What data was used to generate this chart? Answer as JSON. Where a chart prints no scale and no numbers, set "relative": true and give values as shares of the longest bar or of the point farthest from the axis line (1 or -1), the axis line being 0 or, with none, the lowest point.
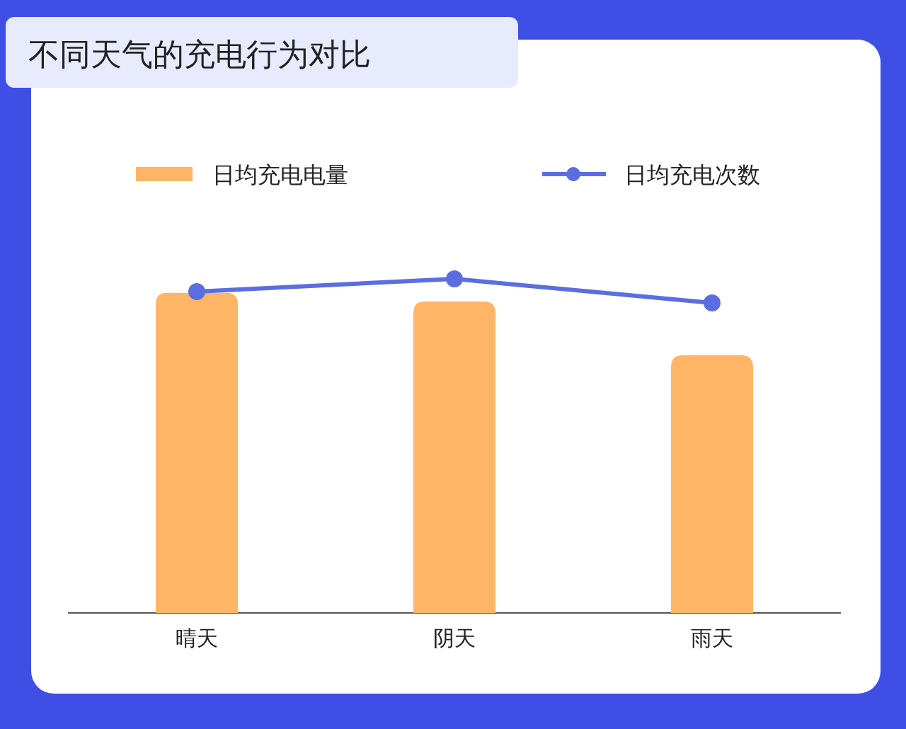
{
  "chart_data": {
    "type": "bar",
    "title": "不同天气的充电行为对比",
    "categories": [
      "晴天",
      "阴天",
      "雨天"
    ],
    "relative": true,
    "legend": "top",
    "grid": false,
    "series": [
      {
        "name": "日均充电电量",
        "color": "#ffb566",
        "values": [
          0.958,
          0.932,
          0.771
        ]
      },
      {
        "name": "日均充电次数",
        "type": "line",
        "color": "#5b6ee1",
        "marker": "circle",
        "values": [
          0.962,
          1,
          0.928
        ]
      }
    ]
  }
}
